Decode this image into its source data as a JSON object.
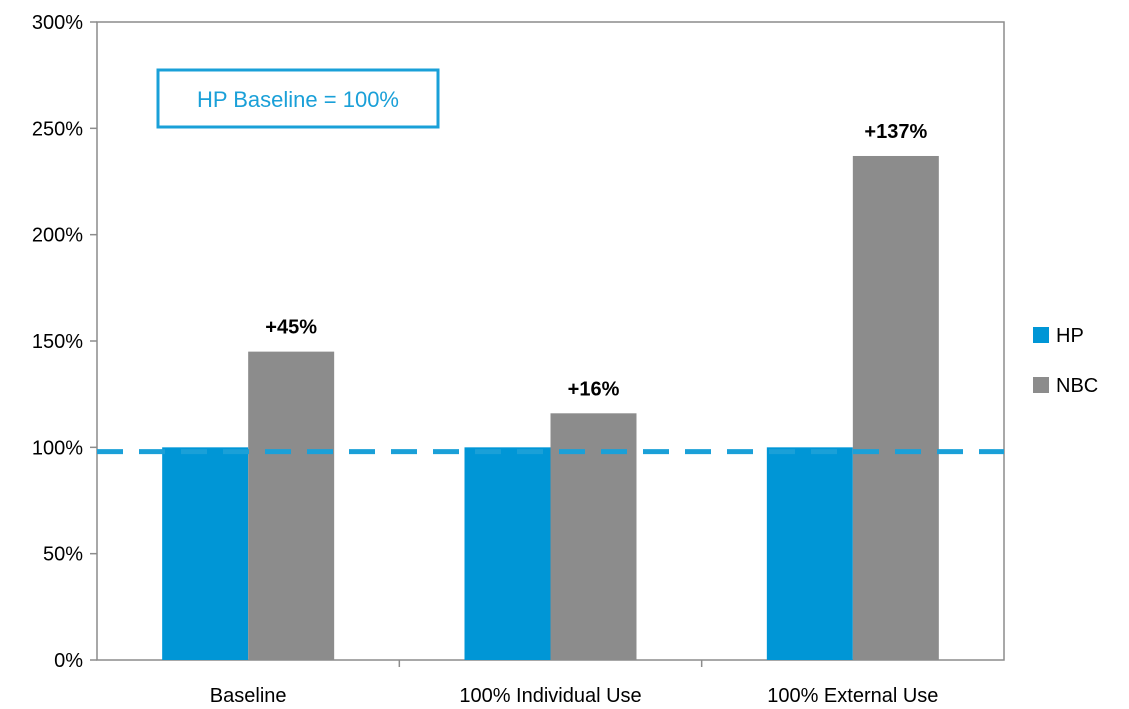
{
  "chart_data": {
    "type": "bar",
    "categories": [
      "Baseline",
      "100% Individual Use",
      "100% External Use"
    ],
    "series": [
      {
        "name": "HP",
        "values": [
          100,
          100,
          100
        ],
        "color": "#0096d6"
      },
      {
        "name": "NBC",
        "values": [
          145,
          116,
          237
        ],
        "color": "#8c8c8c"
      }
    ],
    "data_labels": {
      "NBC": [
        "+45%",
        "+16%",
        "+137%"
      ]
    },
    "ylim": [
      0,
      300
    ],
    "yticks": [
      "0%",
      "50%",
      "100%",
      "150%",
      "200%",
      "250%",
      "300%"
    ],
    "ytick_values": [
      0,
      50,
      100,
      150,
      200,
      250,
      300
    ],
    "reference_line": {
      "value": 98,
      "style": "dashed",
      "color": "#1aa0d8"
    },
    "annotation": {
      "text": "HP Baseline = 100%",
      "color": "#1aa0d8"
    },
    "legend": {
      "placement": "right"
    },
    "grid": false,
    "xlabel": "",
    "ylabel": ""
  }
}
